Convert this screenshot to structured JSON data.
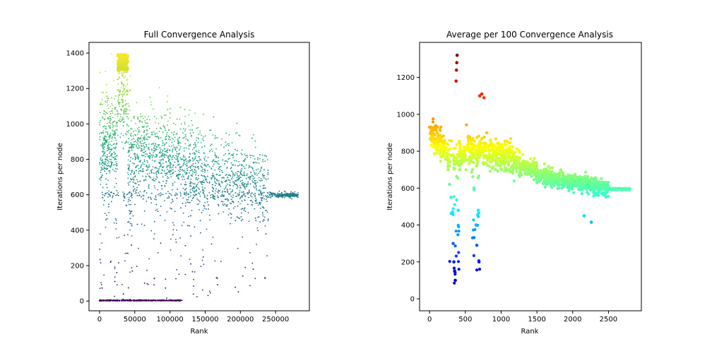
{
  "chart_data": [
    {
      "type": "scatter",
      "title": "Full Convergence Analysis",
      "xlabel": "Rank",
      "ylabel": "Iterations per node",
      "xlim": [
        -15000,
        298000
      ],
      "ylim": [
        -55,
        1460
      ],
      "xticks": [
        0,
        50000,
        100000,
        150000,
        200000,
        250000
      ],
      "yticks": [
        0,
        200,
        400,
        600,
        800,
        1000,
        1200,
        1400
      ],
      "colormap": "viridis",
      "color_range": [
        0,
        1400
      ],
      "grid": false,
      "description_points": [
        {
          "x": 0,
          "y": 2
        },
        {
          "x": 10000,
          "y": 900
        },
        {
          "x": 30000,
          "y": 1380
        },
        {
          "x": 36000,
          "y": 1360
        },
        {
          "x": 38000,
          "y": 540
        },
        {
          "x": 41000,
          "y": 745
        },
        {
          "x": 60000,
          "y": 850
        },
        {
          "x": 100000,
          "y": 780
        },
        {
          "x": 150000,
          "y": 700
        },
        {
          "x": 180000,
          "y": 680
        },
        {
          "x": 200000,
          "y": 640
        },
        {
          "x": 230000,
          "y": 600
        },
        {
          "x": 235000,
          "y": 130
        },
        {
          "x": 260000,
          "y": 600
        },
        {
          "x": 280000,
          "y": 597
        }
      ]
    },
    {
      "type": "scatter",
      "title": "Average per 100 Convergence Analysis",
      "xlabel": "Rank",
      "ylabel": "Iterations per node",
      "xlim": [
        -140,
        2960
      ],
      "ylim": [
        -65,
        1390
      ],
      "xticks": [
        0,
        500,
        1000,
        1500,
        2000,
        2500
      ],
      "yticks": [
        0,
        200,
        400,
        600,
        800,
        1000,
        1200
      ],
      "colormap": "jet",
      "color_range": [
        0,
        1320
      ],
      "grid": false,
      "points": [
        {
          "x": 0,
          "y": 930
        },
        {
          "x": 20,
          "y": 900
        },
        {
          "x": 50,
          "y": 870
        },
        {
          "x": 80,
          "y": 850
        },
        {
          "x": 120,
          "y": 830
        },
        {
          "x": 160,
          "y": 810
        },
        {
          "x": 200,
          "y": 790
        },
        {
          "x": 230,
          "y": 770
        },
        {
          "x": 260,
          "y": 700
        },
        {
          "x": 280,
          "y": 620
        },
        {
          "x": 300,
          "y": 550
        },
        {
          "x": 320,
          "y": 470
        },
        {
          "x": 330,
          "y": 300
        },
        {
          "x": 340,
          "y": 200
        },
        {
          "x": 350,
          "y": 150
        },
        {
          "x": 360,
          "y": 100
        },
        {
          "x": 370,
          "y": 1180
        },
        {
          "x": 375,
          "y": 1240
        },
        {
          "x": 380,
          "y": 1280
        },
        {
          "x": 385,
          "y": 1320
        },
        {
          "x": 400,
          "y": 480
        },
        {
          "x": 420,
          "y": 700
        },
        {
          "x": 450,
          "y": 800
        },
        {
          "x": 500,
          "y": 820
        },
        {
          "x": 550,
          "y": 860
        },
        {
          "x": 600,
          "y": 700
        },
        {
          "x": 620,
          "y": 600
        },
        {
          "x": 650,
          "y": 400
        },
        {
          "x": 660,
          "y": 290
        },
        {
          "x": 680,
          "y": 480
        },
        {
          "x": 690,
          "y": 200
        },
        {
          "x": 700,
          "y": 1100
        },
        {
          "x": 730,
          "y": 1110
        },
        {
          "x": 760,
          "y": 1090
        },
        {
          "x": 800,
          "y": 900
        },
        {
          "x": 850,
          "y": 860
        },
        {
          "x": 900,
          "y": 830
        },
        {
          "x": 950,
          "y": 810
        },
        {
          "x": 1000,
          "y": 790
        },
        {
          "x": 1100,
          "y": 770
        },
        {
          "x": 1200,
          "y": 750
        },
        {
          "x": 1300,
          "y": 720
        },
        {
          "x": 1400,
          "y": 690
        },
        {
          "x": 1500,
          "y": 630
        },
        {
          "x": 1600,
          "y": 700
        },
        {
          "x": 1700,
          "y": 650
        },
        {
          "x": 1800,
          "y": 640
        },
        {
          "x": 1900,
          "y": 630
        },
        {
          "x": 2000,
          "y": 620
        },
        {
          "x": 2100,
          "y": 610
        },
        {
          "x": 2160,
          "y": 450
        },
        {
          "x": 2260,
          "y": 415
        },
        {
          "x": 2300,
          "y": 600
        },
        {
          "x": 2400,
          "y": 590
        },
        {
          "x": 2500,
          "y": 605
        },
        {
          "x": 2600,
          "y": 598
        },
        {
          "x": 2700,
          "y": 596
        },
        {
          "x": 2800,
          "y": 595
        }
      ]
    }
  ]
}
